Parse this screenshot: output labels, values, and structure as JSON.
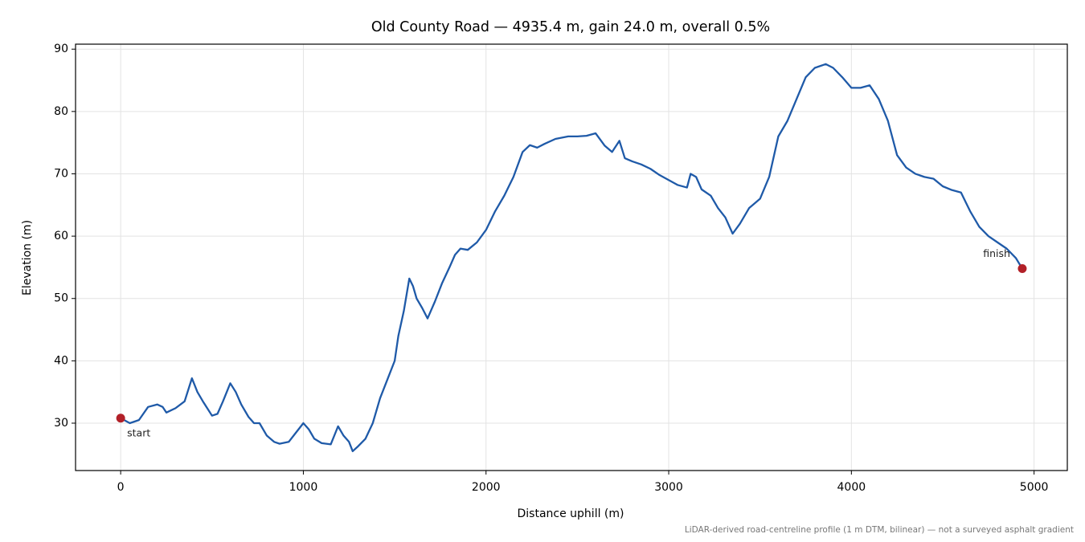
{
  "chart_data": {
    "type": "line",
    "title": "Old County Road — 4935.4 m, gain 24.0 m, overall 0.5%",
    "x_label": "Distance uphill (m)",
    "y_label": "Elevation (m)",
    "footnote": "LiDAR-derived road-centreline profile (1 m DTM, bilinear) — not a surveyed asphalt gradient",
    "x": [
      0,
      50,
      100,
      150,
      200,
      230,
      250,
      300,
      350,
      390,
      420,
      450,
      500,
      530,
      560,
      600,
      630,
      660,
      700,
      730,
      760,
      800,
      840,
      870,
      920,
      960,
      1000,
      1030,
      1060,
      1100,
      1150,
      1190,
      1220,
      1250,
      1270,
      1300,
      1340,
      1380,
      1420,
      1460,
      1500,
      1520,
      1550,
      1580,
      1600,
      1620,
      1650,
      1680,
      1720,
      1760,
      1800,
      1830,
      1860,
      1900,
      1950,
      2000,
      2050,
      2100,
      2150,
      2200,
      2240,
      2280,
      2320,
      2380,
      2450,
      2500,
      2550,
      2600,
      2650,
      2690,
      2730,
      2760,
      2800,
      2850,
      2900,
      2950,
      3000,
      3050,
      3100,
      3120,
      3150,
      3180,
      3230,
      3270,
      3310,
      3350,
      3390,
      3440,
      3500,
      3550,
      3600,
      3650,
      3700,
      3750,
      3800,
      3860,
      3900,
      3950,
      4000,
      4050,
      4100,
      4150,
      4200,
      4250,
      4300,
      4350,
      4400,
      4450,
      4500,
      4550,
      4600,
      4650,
      4700,
      4750,
      4800,
      4850,
      4900,
      4935.4
    ],
    "series": [
      {
        "name": "Elevation",
        "color": "#1f5aa8",
        "values": [
          30.8,
          30.0,
          30.5,
          32.6,
          33.0,
          32.6,
          31.7,
          32.4,
          33.5,
          37.2,
          35.0,
          33.5,
          31.2,
          31.5,
          33.5,
          36.4,
          35.0,
          33.0,
          31.0,
          30.0,
          30.0,
          28.0,
          27.0,
          26.7,
          27.0,
          28.5,
          30.0,
          29.0,
          27.5,
          26.8,
          26.6,
          29.5,
          28.0,
          27.0,
          25.5,
          26.3,
          27.5,
          30.0,
          34.0,
          37.0,
          40.0,
          44.0,
          48.0,
          53.2,
          52.0,
          50.0,
          48.5,
          46.8,
          49.5,
          52.5,
          55.0,
          57.0,
          58.0,
          57.8,
          59.0,
          61.0,
          64.0,
          66.5,
          69.5,
          73.5,
          74.6,
          74.2,
          74.8,
          75.6,
          76.0,
          76.0,
          76.1,
          76.5,
          74.5,
          73.5,
          75.3,
          72.5,
          72.0,
          71.5,
          70.8,
          69.8,
          69.0,
          68.2,
          67.8,
          70.0,
          69.5,
          67.5,
          66.5,
          64.5,
          63.0,
          60.4,
          62.0,
          64.5,
          66.0,
          69.5,
          76.0,
          78.5,
          82.0,
          85.5,
          87.0,
          87.6,
          87.0,
          85.5,
          83.8,
          83.8,
          84.2,
          82.0,
          78.5,
          73.0,
          71.0,
          70.0,
          69.5,
          69.2,
          68.0,
          67.4,
          67.0,
          64.0,
          61.5,
          60.0,
          59.0,
          58.0,
          56.5,
          54.8
        ]
      }
    ],
    "markers": [
      {
        "label": "start",
        "x": 0,
        "y": 30.8,
        "color": "#b22028"
      },
      {
        "label": "finish",
        "x": 4935.4,
        "y": 54.8,
        "color": "#b22028"
      }
    ],
    "xlim": [
      -247,
      5182
    ],
    "ylim": [
      22.4,
      90.8
    ],
    "xticks": [
      0,
      1000,
      2000,
      3000,
      4000,
      5000
    ],
    "yticks": [
      30,
      40,
      50,
      60,
      70,
      80,
      90
    ],
    "grid": true
  }
}
